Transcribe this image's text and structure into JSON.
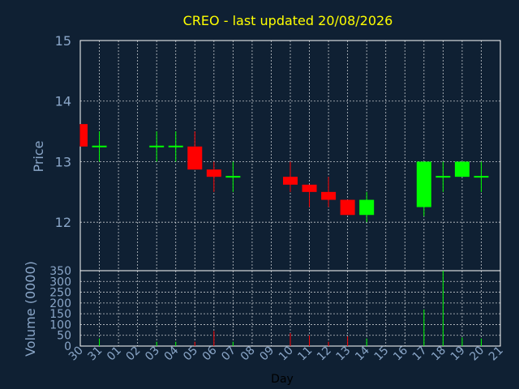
{
  "chart_data": {
    "type": "candlestick",
    "title": "CREO - last updated 20/08/2026",
    "price_axis": {
      "label": "Price",
      "ticks": [
        "15",
        "14",
        "13",
        "12"
      ],
      "ylim": [
        11.2,
        15
      ]
    },
    "volume_axis": {
      "label": "Volume (0000)",
      "ticks": [
        "350",
        "300",
        "250",
        "200",
        "150",
        "100",
        "50",
        "0"
      ],
      "ylim": [
        0,
        350
      ]
    },
    "xlabel": "Day",
    "days": [
      "30",
      "31",
      "01",
      "02",
      "03",
      "04",
      "05",
      "06",
      "07",
      "08",
      "09",
      "10",
      "11",
      "12",
      "13",
      "14",
      "15",
      "16",
      "17",
      "18",
      "19",
      "20",
      "21"
    ],
    "grid": true,
    "colors": {
      "background": "#0f2033",
      "up": "#00ff00",
      "down": "#ff0000",
      "grid": "#ffffff",
      "axis_text": "#8aa6c8",
      "title": "#ffff00"
    },
    "candles": [
      {
        "day": "30",
        "open": 13.62,
        "high": 13.62,
        "low": 13.25,
        "close": 13.25,
        "volume": 0
      },
      {
        "day": "31",
        "open": 13.25,
        "high": 13.5,
        "low": 13.0,
        "close": 13.25,
        "volume": 35
      },
      {
        "day": "03",
        "open": 13.25,
        "high": 13.5,
        "low": 13.0,
        "close": 13.25,
        "volume": 20
      },
      {
        "day": "04",
        "open": 13.25,
        "high": 13.5,
        "low": 13.0,
        "close": 13.25,
        "volume": 20
      },
      {
        "day": "05",
        "open": 13.25,
        "high": 13.5,
        "low": 12.87,
        "close": 12.87,
        "volume": 20
      },
      {
        "day": "06",
        "open": 12.87,
        "high": 13.0,
        "low": 12.5,
        "close": 12.75,
        "volume": 70
      },
      {
        "day": "07",
        "open": 12.75,
        "high": 13.0,
        "low": 12.5,
        "close": 12.75,
        "volume": 20
      },
      {
        "day": "10",
        "open": 12.75,
        "high": 13.0,
        "low": 12.5,
        "close": 12.62,
        "volume": 60
      },
      {
        "day": "11",
        "open": 12.62,
        "high": 12.62,
        "low": 12.25,
        "close": 12.5,
        "volume": 50
      },
      {
        "day": "12",
        "open": 12.5,
        "high": 12.75,
        "low": 12.25,
        "close": 12.37,
        "volume": 20
      },
      {
        "day": "13",
        "open": 12.37,
        "high": 12.37,
        "low": 12.12,
        "close": 12.12,
        "volume": 45
      },
      {
        "day": "14",
        "open": 12.12,
        "high": 12.5,
        "low": 12.0,
        "close": 12.37,
        "volume": 35
      },
      {
        "day": "17",
        "open": 12.25,
        "high": 13.0,
        "low": 12.1,
        "close": 13.0,
        "volume": 170
      },
      {
        "day": "18",
        "open": 12.75,
        "high": 13.0,
        "low": 12.5,
        "close": 12.75,
        "volume": 350
      },
      {
        "day": "19",
        "open": 12.75,
        "high": 13.0,
        "low": 12.75,
        "close": 13.0,
        "volume": 40
      },
      {
        "day": "20",
        "open": 12.75,
        "high": 13.0,
        "low": 12.5,
        "close": 12.75,
        "volume": 35
      }
    ]
  }
}
